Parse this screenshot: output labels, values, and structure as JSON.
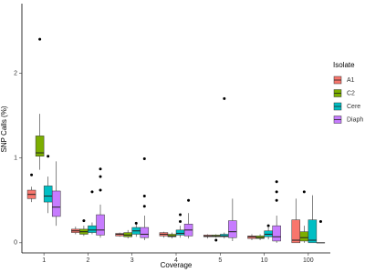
{
  "chart_data": {
    "type": "boxplot",
    "x_label": "Coverage",
    "y_label": "SNP Calls (%)",
    "legend_title": "Isolate",
    "legend_position": "right",
    "categories": [
      "1",
      "2",
      "3",
      "4",
      "5",
      "10",
      "100"
    ],
    "ylim": [
      -0.12,
      2.82
    ],
    "yticks": [
      0,
      1,
      2
    ],
    "series": [
      {
        "name": "A1",
        "color": "#F8766D",
        "boxes": [
          {
            "min": 0.48,
            "q1": 0.52,
            "median": 0.57,
            "q3": 0.62,
            "max": 0.66,
            "outliers": [
              0.8
            ]
          },
          {
            "min": 0.1,
            "q1": 0.12,
            "median": 0.14,
            "q3": 0.16,
            "max": 0.19,
            "outliers": []
          },
          {
            "min": 0.07,
            "q1": 0.08,
            "median": 0.1,
            "q3": 0.11,
            "max": 0.12,
            "outliers": []
          },
          {
            "min": 0.06,
            "q1": 0.08,
            "median": 0.1,
            "q3": 0.12,
            "max": 0.13,
            "outliers": []
          },
          {
            "min": 0.05,
            "q1": 0.07,
            "median": 0.08,
            "q3": 0.09,
            "max": 0.1,
            "outliers": []
          },
          {
            "min": 0.03,
            "q1": 0.05,
            "median": 0.07,
            "q3": 0.08,
            "max": 0.1,
            "outliers": []
          },
          {
            "min": 0,
            "q1": 0,
            "median": 0.03,
            "q3": 0.27,
            "max": 0.52,
            "outliers": []
          }
        ]
      },
      {
        "name": "C2",
        "color": "#7CAE00",
        "boxes": [
          {
            "min": 0.86,
            "q1": 1.02,
            "median": 1.06,
            "q3": 1.26,
            "max": 1.52,
            "outliers": [
              2.4
            ]
          },
          {
            "min": 0.08,
            "q1": 0.1,
            "median": 0.13,
            "q3": 0.16,
            "max": 0.2,
            "outliers": [
              0.26
            ]
          },
          {
            "min": 0.05,
            "q1": 0.07,
            "median": 0.09,
            "q3": 0.12,
            "max": 0.15,
            "outliers": []
          },
          {
            "min": 0.05,
            "q1": 0.07,
            "median": 0.08,
            "q3": 0.1,
            "max": 0.12,
            "outliers": []
          },
          {
            "min": 0.06,
            "q1": 0.07,
            "median": 0.08,
            "q3": 0.09,
            "max": 0.1,
            "outliers": [
              0.03
            ]
          },
          {
            "min": 0.03,
            "q1": 0.05,
            "median": 0.06,
            "q3": 0.08,
            "max": 0.1,
            "outliers": []
          },
          {
            "min": 0,
            "q1": 0.02,
            "median": 0.06,
            "q3": 0.13,
            "max": 0.2,
            "outliers": [
              0.6
            ]
          }
        ]
      },
      {
        "name": "Cere",
        "color": "#00BFC4",
        "boxes": [
          {
            "min": 0.35,
            "q1": 0.48,
            "median": 0.55,
            "q3": 0.67,
            "max": 0.78,
            "outliers": [
              1.02
            ]
          },
          {
            "min": 0.1,
            "q1": 0.12,
            "median": 0.15,
            "q3": 0.2,
            "max": 0.24,
            "outliers": [
              0.6
            ]
          },
          {
            "min": 0.07,
            "q1": 0.1,
            "median": 0.14,
            "q3": 0.18,
            "max": 0.22,
            "outliers": [
              0.23
            ]
          },
          {
            "min": 0.06,
            "q1": 0.09,
            "median": 0.11,
            "q3": 0.15,
            "max": 0.2,
            "outliers": [
              0.25,
              0.33
            ]
          },
          {
            "min": 0.05,
            "q1": 0.07,
            "median": 0.08,
            "q3": 0.1,
            "max": 0.12,
            "outliers": [
              1.7
            ]
          },
          {
            "min": 0.04,
            "q1": 0.07,
            "median": 0.1,
            "q3": 0.14,
            "max": 0.18,
            "outliers": [
              0.2
            ]
          },
          {
            "min": 0,
            "q1": 0,
            "median": 0.03,
            "q3": 0.27,
            "max": 0.56,
            "outliers": []
          }
        ]
      },
      {
        "name": "Diaph",
        "color": "#C77CFF",
        "boxes": [
          {
            "min": 0.2,
            "q1": 0.31,
            "median": 0.42,
            "q3": 0.61,
            "max": 0.96,
            "outliers": []
          },
          {
            "min": 0.06,
            "q1": 0.09,
            "median": 0.15,
            "q3": 0.33,
            "max": 0.45,
            "outliers": [
              0.62,
              0.78,
              0.87
            ]
          },
          {
            "min": 0.03,
            "q1": 0.06,
            "median": 0.1,
            "q3": 0.18,
            "max": 0.32,
            "outliers": [
              0.43,
              0.55,
              0.99
            ]
          },
          {
            "min": 0.05,
            "q1": 0.08,
            "median": 0.15,
            "q3": 0.22,
            "max": 0.35,
            "outliers": [
              0.5
            ]
          },
          {
            "min": 0.02,
            "q1": 0.06,
            "median": 0.13,
            "q3": 0.26,
            "max": 0.52,
            "outliers": []
          },
          {
            "min": 0,
            "q1": 0.02,
            "median": 0.07,
            "q3": 0.2,
            "max": 0.32,
            "outliers": [
              0.5,
              0.6,
              0.72
            ]
          },
          {
            "min": 0,
            "q1": 0,
            "median": 0,
            "q3": 0,
            "max": 0,
            "outliers": [
              0.25
            ]
          }
        ]
      }
    ]
  }
}
